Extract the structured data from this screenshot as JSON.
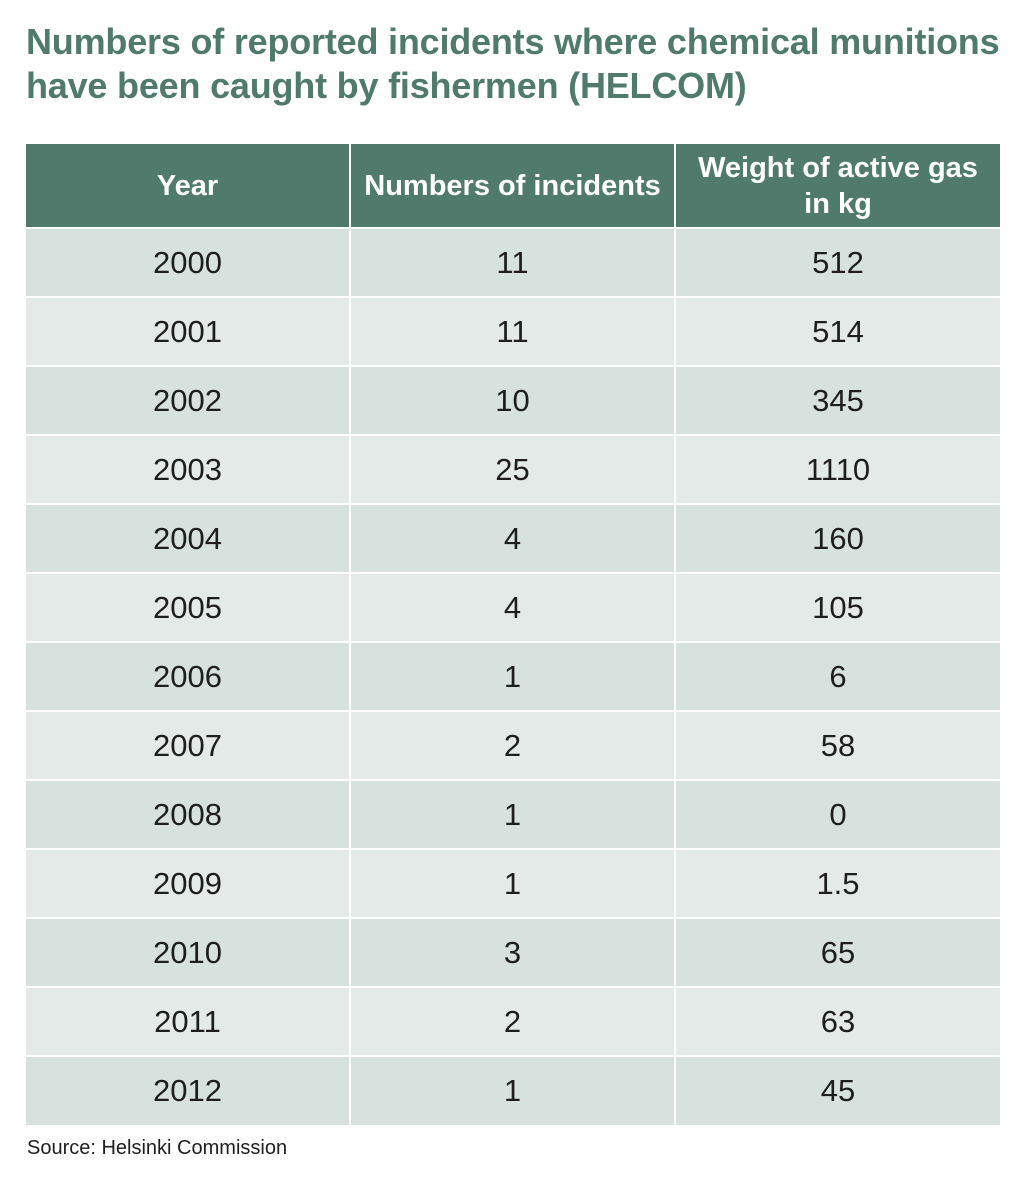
{
  "title": "Numbers of reported incidents where chemical munitions have been caught by fishermen (HELCOM)",
  "table": {
    "headers": [
      "Year",
      "Numbers of incidents",
      "Weight of active gas in kg"
    ],
    "rows": [
      [
        "2000",
        "11",
        "512"
      ],
      [
        "2001",
        "11",
        "514"
      ],
      [
        "2002",
        "10",
        "345"
      ],
      [
        "2003",
        "25",
        "1110"
      ],
      [
        "2004",
        "4",
        "160"
      ],
      [
        "2005",
        "4",
        "105"
      ],
      [
        "2006",
        "1",
        "6"
      ],
      [
        "2007",
        "2",
        "58"
      ],
      [
        "2008",
        "1",
        "0"
      ],
      [
        "2009",
        "1",
        "1.5"
      ],
      [
        "2010",
        "3",
        "65"
      ],
      [
        "2011",
        "2",
        "63"
      ],
      [
        "2012",
        "1",
        "45"
      ]
    ]
  },
  "source": "Source: Helsinki Commission",
  "colors": {
    "accent": "#4f7a6c",
    "row_dark": "#d7e1de",
    "row_light": "#e4eae8"
  }
}
